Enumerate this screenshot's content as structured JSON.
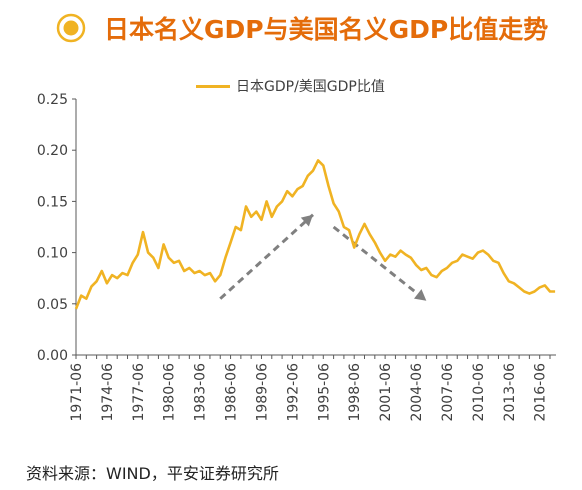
{
  "header": {
    "title": "日本名义GDP与美国名义GDP比值走势",
    "icon": "target-circle-icon",
    "accent_color": "#e46c0a"
  },
  "source": "资料来源：WIND，平安证券研究所",
  "chart_data": {
    "type": "line",
    "legend_position": "top-center",
    "grid": false,
    "series": [
      {
        "name": "日本GDP/美国GDP比值",
        "color": "#f0b323",
        "x": [
          "1971-06",
          "1971-12",
          "1972-06",
          "1972-12",
          "1973-06",
          "1973-12",
          "1974-06",
          "1974-12",
          "1975-06",
          "1975-12",
          "1976-06",
          "1976-12",
          "1977-06",
          "1977-12",
          "1978-06",
          "1978-12",
          "1979-06",
          "1979-12",
          "1980-06",
          "1980-12",
          "1981-06",
          "1981-12",
          "1982-06",
          "1982-12",
          "1983-06",
          "1983-12",
          "1984-06",
          "1984-12",
          "1985-06",
          "1985-12",
          "1986-06",
          "1986-12",
          "1987-06",
          "1987-12",
          "1988-06",
          "1988-12",
          "1989-06",
          "1989-12",
          "1990-06",
          "1990-12",
          "1991-06",
          "1991-12",
          "1992-06",
          "1992-12",
          "1993-06",
          "1993-12",
          "1994-06",
          "1994-12",
          "1995-06",
          "1995-12",
          "1996-06",
          "1996-12",
          "1997-06",
          "1997-12",
          "1998-06",
          "1998-12",
          "1999-06",
          "1999-12",
          "2000-06",
          "2000-12",
          "2001-06",
          "2001-12",
          "2002-06",
          "2002-12",
          "2003-06",
          "2003-12",
          "2004-06",
          "2004-12",
          "2005-06",
          "2005-12",
          "2006-06",
          "2006-12",
          "2007-06",
          "2007-12",
          "2008-06",
          "2008-12",
          "2009-06",
          "2009-12",
          "2010-06",
          "2010-12",
          "2011-06",
          "2011-12",
          "2012-06",
          "2012-12",
          "2013-06",
          "2013-12",
          "2014-06",
          "2014-12",
          "2015-06",
          "2015-12",
          "2016-06",
          "2016-12",
          "2017-06",
          "2017-12"
        ],
        "values": [
          0.045,
          0.058,
          0.055,
          0.067,
          0.072,
          0.082,
          0.07,
          0.078,
          0.075,
          0.08,
          0.078,
          0.09,
          0.098,
          0.12,
          0.1,
          0.095,
          0.085,
          0.108,
          0.095,
          0.09,
          0.092,
          0.082,
          0.085,
          0.08,
          0.082,
          0.078,
          0.08,
          0.072,
          0.078,
          0.095,
          0.11,
          0.125,
          0.122,
          0.145,
          0.135,
          0.14,
          0.132,
          0.15,
          0.135,
          0.145,
          0.15,
          0.16,
          0.155,
          0.162,
          0.165,
          0.175,
          0.18,
          0.19,
          0.185,
          0.165,
          0.148,
          0.14,
          0.125,
          0.122,
          0.105,
          0.118,
          0.128,
          0.118,
          0.11,
          0.1,
          0.092,
          0.098,
          0.096,
          0.102,
          0.098,
          0.095,
          0.088,
          0.083,
          0.085,
          0.078,
          0.076,
          0.082,
          0.085,
          0.09,
          0.092,
          0.098,
          0.096,
          0.094,
          0.1,
          0.102,
          0.098,
          0.092,
          0.09,
          0.08,
          0.072,
          0.07,
          0.066,
          0.062,
          0.06,
          0.062,
          0.066,
          0.068,
          0.062,
          0.062
        ]
      }
    ],
    "y_axis": {
      "min": 0,
      "max": 0.25,
      "ticks": [
        "0.00",
        "0.05",
        "0.10",
        "0.15",
        "0.20",
        "0.25"
      ]
    },
    "x_axis": {
      "ticks": [
        "1971-06",
        "1974-06",
        "1977-06",
        "1980-06",
        "1983-06",
        "1986-06",
        "1989-06",
        "1992-06",
        "1995-06",
        "1998-06",
        "2001-06",
        "2004-06",
        "2007-06",
        "2010-06",
        "2013-06",
        "2016-06"
      ]
    },
    "annotations": [
      {
        "type": "dashed-arrow",
        "from": {
          "x": "1985-06",
          "y": 0.055
        },
        "to": {
          "x": "1994-06",
          "y": 0.137
        },
        "color": "#808080"
      },
      {
        "type": "dashed-arrow",
        "from": {
          "x": "1996-06",
          "y": 0.125
        },
        "to": {
          "x": "2005-06",
          "y": 0.053
        },
        "color": "#808080"
      }
    ]
  }
}
